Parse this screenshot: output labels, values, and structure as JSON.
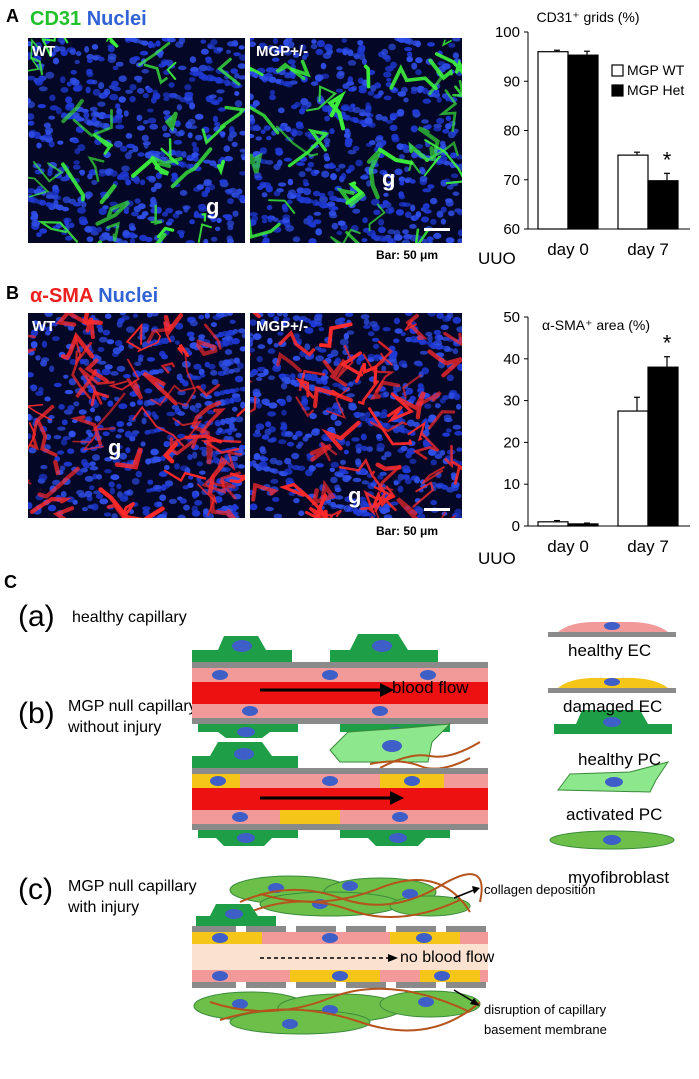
{
  "panel_a": {
    "letter": "A",
    "stain_marker": "CD31",
    "stain_nuclei": "Nuclei",
    "image_wt_label": "WT",
    "image_het_label": "MGP+/-",
    "glom_label": "g",
    "scale_note": "Bar: 50 μm"
  },
  "panel_b": {
    "letter": "B",
    "stain_marker": "α-SMA",
    "stain_nuclei": "Nuclei",
    "image_wt_label": "WT",
    "image_het_label": "MGP+/-",
    "glom_label": "g",
    "scale_note": "Bar: 50 μm"
  },
  "uuo_label": "UUO",
  "chart_data": [
    {
      "type": "bar",
      "title": "CD31⁺ grids (%)",
      "categories": [
        "day 0",
        "day 7"
      ],
      "series": [
        {
          "name": "MGP WT",
          "values": [
            96,
            75
          ],
          "errors": [
            0.3,
            0.6
          ]
        },
        {
          "name": "MGP Het",
          "values": [
            95.3,
            69.8
          ],
          "errors": [
            0.8,
            1.5
          ]
        }
      ],
      "ylim": [
        60,
        100
      ],
      "yticks": [
        60,
        70,
        80,
        90,
        100
      ],
      "significance": [
        {
          "category": "day 7",
          "series": "MGP Het",
          "label": "*"
        }
      ],
      "legend": "top-right"
    },
    {
      "type": "bar",
      "title": "α-SMA⁺ area (%)",
      "categories": [
        "day 0",
        "day 7"
      ],
      "series": [
        {
          "name": "MGP WT",
          "values": [
            1,
            27.5
          ],
          "errors": [
            0.3,
            3.3
          ]
        },
        {
          "name": "MGP Het",
          "values": [
            0.5,
            38
          ],
          "errors": [
            0.2,
            2.5
          ]
        }
      ],
      "ylim": [
        0,
        50
      ],
      "yticks": [
        0,
        10,
        20,
        30,
        40,
        50
      ],
      "significance": [
        {
          "category": "day 7",
          "series": "MGP Het",
          "label": "*"
        }
      ]
    }
  ],
  "panel_c": {
    "letter": "C",
    "a_letter": "(a)",
    "a_title": "healthy capillary",
    "b_letter": "(b)",
    "b_title_1": "MGP null capillary",
    "b_title_2": "without injury",
    "c_letter": "(c)",
    "c_title_1": "MGP null capillary",
    "c_title_2": "with injury",
    "blood_flow": "blood flow",
    "no_blood_flow": "no blood flow",
    "collagen": "collagen deposition",
    "disruption_1": "disruption of capillary",
    "disruption_2": "basement membrane",
    "legend": [
      "healthy EC",
      "damaged EC",
      "healthy PC",
      "activated PC",
      "myofibroblast"
    ],
    "colors": {
      "ec_healthy": "#f29a9a",
      "ec_damaged": "#f5c518",
      "pc_healthy": "#1e9e47",
      "pc_activated": "#8de88d",
      "myofibroblast": "#6cc04a",
      "blood": "#ee1111",
      "membrane": "#8a8a8a",
      "nucleus": "#3f5fc8",
      "collagen": "#b5531c"
    }
  }
}
